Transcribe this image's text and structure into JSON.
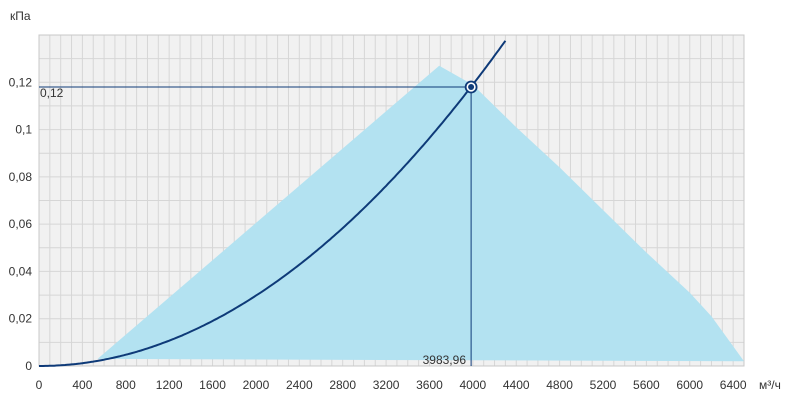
{
  "chart_data": {
    "type": "area",
    "y_unit": "кПа",
    "x_unit": "м³/ч",
    "x_ticks": [
      0,
      400,
      800,
      1200,
      1600,
      2000,
      2400,
      2800,
      3200,
      3600,
      4000,
      4400,
      4800,
      5200,
      5600,
      6000,
      6400
    ],
    "x_tick_labels": [
      "0",
      "400",
      "800",
      "1200",
      "1600",
      "2000",
      "2400",
      "2800",
      "3200",
      "3600",
      "4000",
      "4400",
      "4800",
      "5200",
      "5600",
      "6000",
      "6400"
    ],
    "y_ticks": [
      0,
      0.02,
      0.04,
      0.06,
      0.08,
      0.1,
      0.12
    ],
    "y_tick_labels": [
      "0",
      "0,02",
      "0,04",
      "0,06",
      "0,08",
      "0,1",
      "0,12"
    ],
    "xlim": [
      0,
      6500
    ],
    "ylim": [
      0,
      0.14
    ],
    "grid": true,
    "series": [
      {
        "kind": "operating-range-area",
        "color": "#b3e2f1",
        "points": [
          [
            540,
            0.003
          ],
          [
            3690,
            0.127
          ],
          [
            4000,
            0.119
          ],
          [
            4400,
            0.101
          ],
          [
            4800,
            0.084
          ],
          [
            5200,
            0.066
          ],
          [
            5600,
            0.048
          ],
          [
            6000,
            0.031
          ],
          [
            6200,
            0.021
          ],
          [
            6500,
            0.002
          ]
        ]
      },
      {
        "kind": "network-curve",
        "color": "#0e3a78",
        "formula_coefficient": 7.44e-09,
        "x_range": [
          0,
          4310
        ]
      }
    ],
    "operating_point": {
      "x": 3983.96,
      "y": 0.118,
      "x_label": "3983,96",
      "y_label": "0,12",
      "color": "#0e3a78"
    }
  }
}
